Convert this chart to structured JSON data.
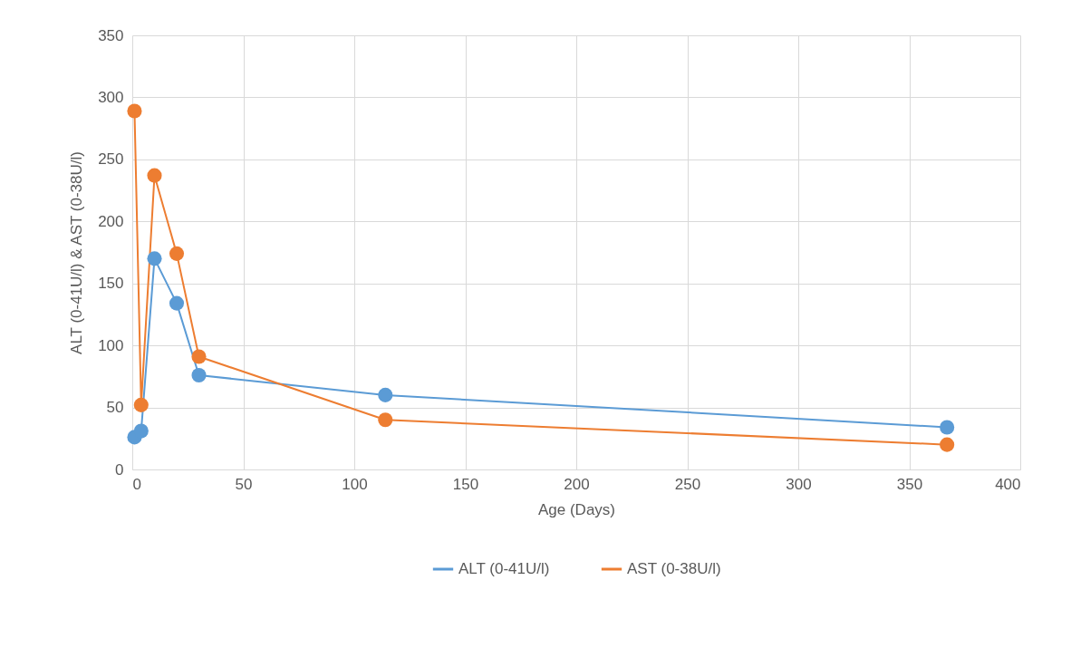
{
  "chart_data": {
    "type": "line",
    "xlabel": "Age (Days)",
    "ylabel": "ALT (0-41U/l) & AST (0-38U/l)",
    "x": [
      1,
      4,
      10,
      20,
      30,
      114,
      367
    ],
    "series": [
      {
        "name": "ALT (0-41U/l)",
        "color": "#5b9bd5",
        "values": [
          26,
          31,
          170,
          134,
          76,
          60,
          34
        ]
      },
      {
        "name": "AST (0-38U/l)",
        "color": "#ed7d31",
        "values": [
          289,
          52,
          237,
          174,
          91,
          40,
          20
        ]
      }
    ],
    "xlim": [
      0,
      400
    ],
    "xticks": [
      0,
      50,
      100,
      150,
      200,
      250,
      300,
      350,
      400
    ],
    "ylim": [
      0,
      350
    ],
    "yticks": [
      0,
      50,
      100,
      150,
      200,
      250,
      300,
      350
    ],
    "grid": true,
    "legend": "bottom",
    "marker": "circle",
    "line_style": "solid"
  }
}
